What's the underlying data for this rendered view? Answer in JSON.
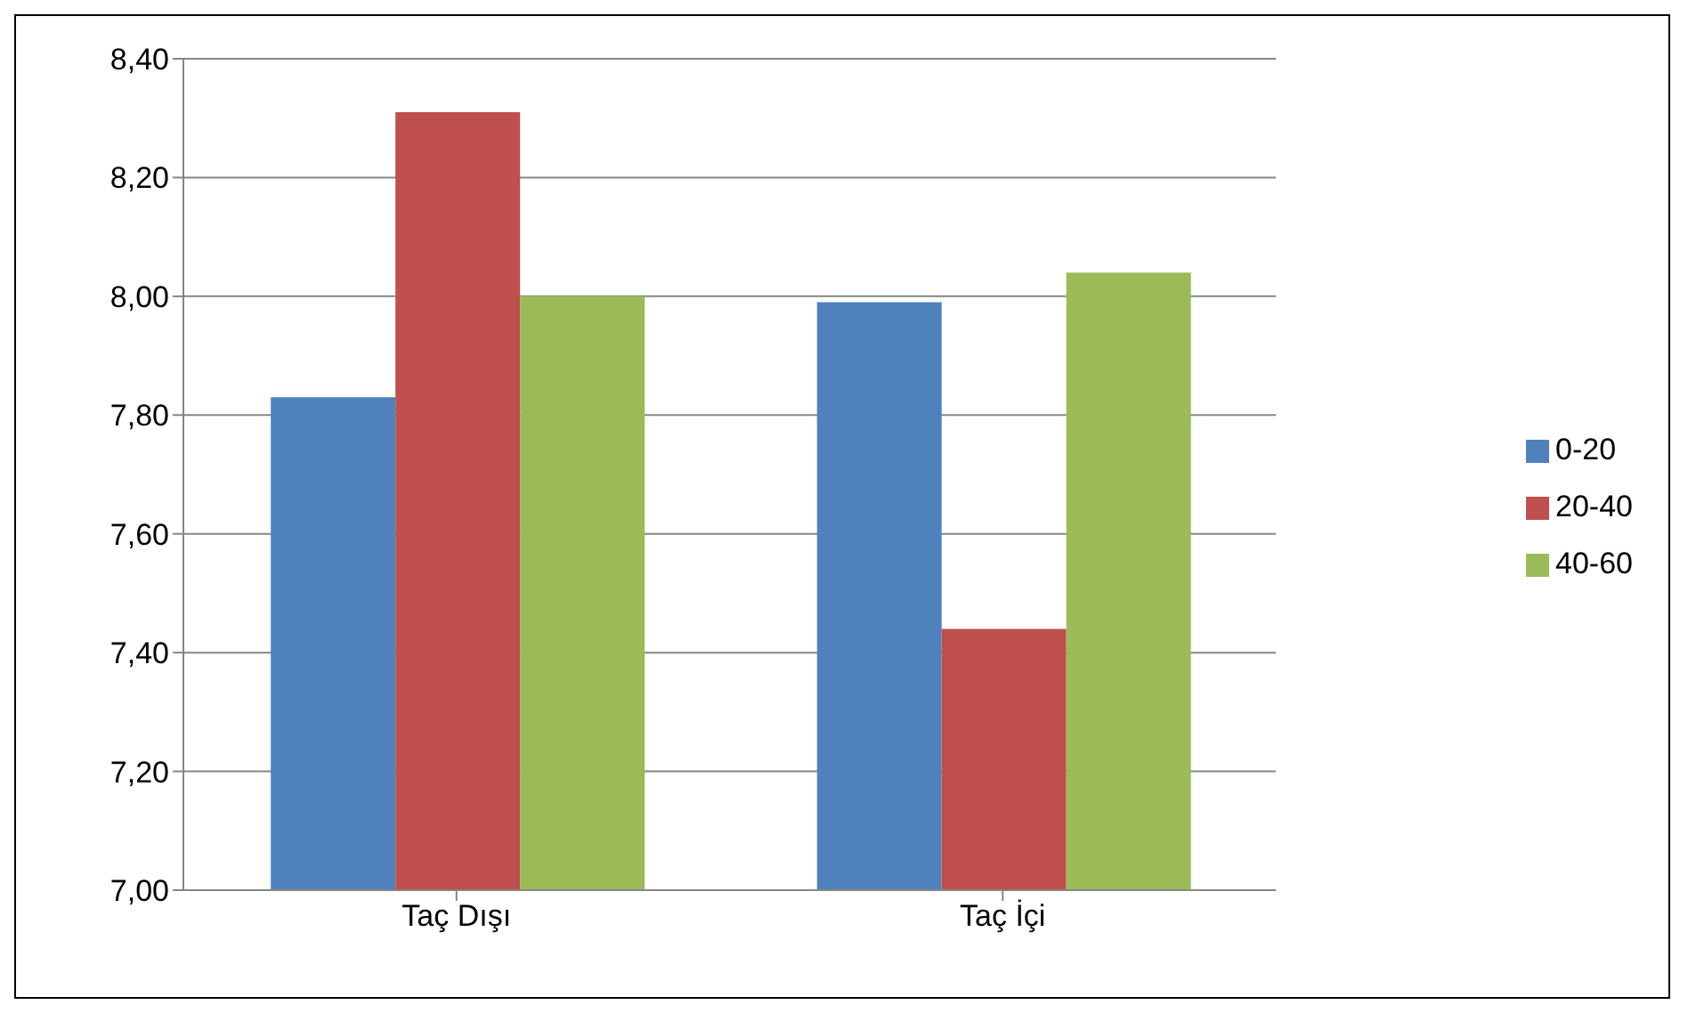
{
  "chart_data": {
    "type": "bar",
    "categories": [
      "Taç Dışı",
      "Taç İçi"
    ],
    "series": [
      {
        "name": "0-20",
        "color": "#4f81bd",
        "values": [
          7.83,
          7.99
        ]
      },
      {
        "name": "20-40",
        "color": "#c0504d",
        "values": [
          8.31,
          7.44
        ]
      },
      {
        "name": "40-60",
        "color": "#9bbb59",
        "values": [
          8.0,
          8.04
        ]
      }
    ],
    "ylim": [
      7.0,
      8.4
    ],
    "yticks": [
      {
        "value": 7.0,
        "label": "7,00"
      },
      {
        "value": 7.2,
        "label": "7,20"
      },
      {
        "value": 7.4,
        "label": "7,40"
      },
      {
        "value": 7.6,
        "label": "7,60"
      },
      {
        "value": 7.8,
        "label": "7,80"
      },
      {
        "value": 8.0,
        "label": "8,00"
      },
      {
        "value": 8.2,
        "label": "8,20"
      },
      {
        "value": 8.4,
        "label": "8,40"
      }
    ],
    "grid": "y",
    "legend": "right"
  }
}
